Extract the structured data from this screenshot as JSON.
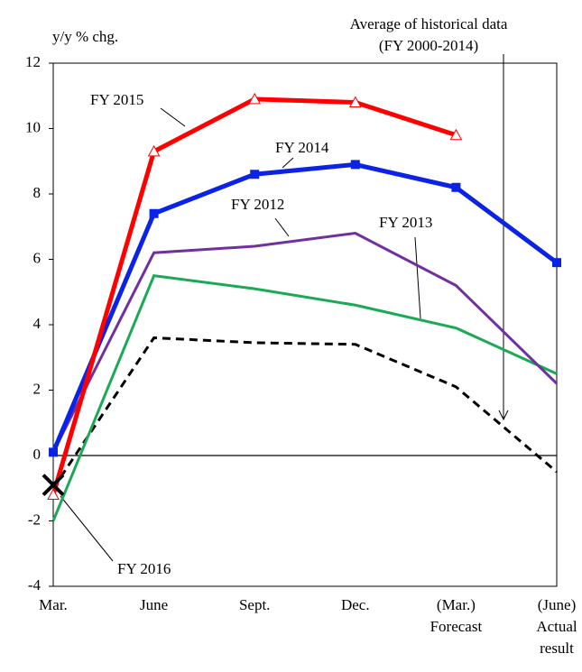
{
  "chart_data": {
    "type": "line",
    "y_label": "y/y % chg.",
    "categories": [
      [
        "Mar."
      ],
      [
        "June"
      ],
      [
        "Sept."
      ],
      [
        "Dec."
      ],
      [
        "(Mar.)",
        "Forecast"
      ],
      [
        "(June)",
        "Actual",
        "result"
      ]
    ],
    "ylim": [
      -4,
      12
    ],
    "yticks": [
      -4,
      -2,
      0,
      2,
      4,
      6,
      8,
      10,
      12
    ],
    "series": [
      {
        "color": "#000000",
        "dashed": true,
        "values": [
          -1.0,
          3.6,
          3.45,
          3.4,
          2.1,
          -0.5
        ]
      },
      {
        "name": "FY 2013",
        "color": "#1aaa55",
        "values": [
          -2.0,
          5.5,
          5.1,
          4.6,
          3.9,
          2.5
        ]
      },
      {
        "name": "FY 2012",
        "color": "#7030a0",
        "values": [
          0.1,
          6.2,
          6.4,
          6.8,
          5.2,
          2.2
        ]
      },
      {
        "name": "FY 2014",
        "color": "#0a23e6",
        "marker": "square",
        "values": [
          0.1,
          7.4,
          8.6,
          8.9,
          8.2,
          5.9
        ]
      },
      {
        "name": "FY 2015",
        "color": "#ff0000",
        "marker": "triangle",
        "values": [
          -1.2,
          9.3,
          10.9,
          10.8,
          9.8,
          null
        ]
      },
      {
        "name": "FY 2016",
        "color": "#000000",
        "marker": "x",
        "values": [
          -0.9,
          null,
          null,
          null,
          null,
          null
        ]
      }
    ],
    "annotation": [
      "Average of historical data",
      "(FY 2000-2014)"
    ]
  }
}
